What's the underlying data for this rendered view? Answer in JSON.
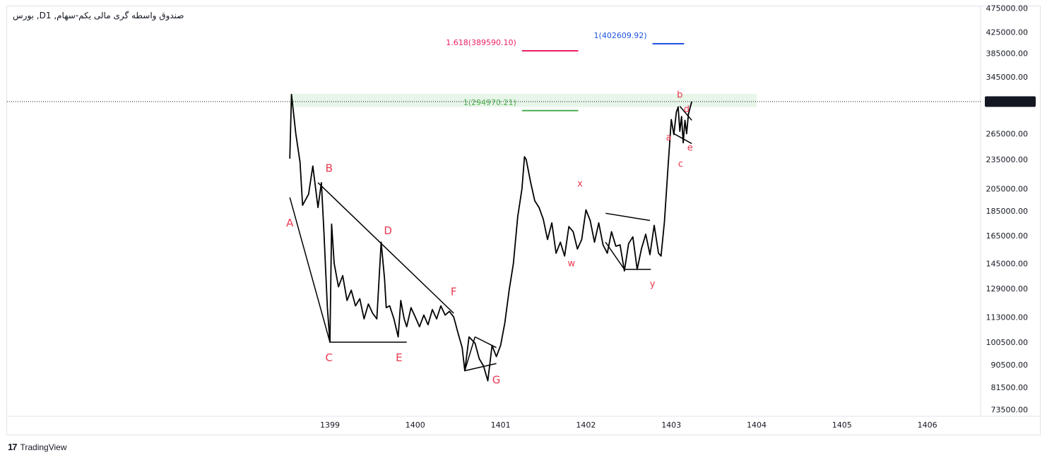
{
  "title": "بورس ,Dصندوق واسطه گری مالی یکم-سهام, 1",
  "brand": {
    "logo": "17",
    "name": "TradingView"
  },
  "colors": {
    "price_line": "#000000",
    "wave_label": "#e8384f",
    "fib_pink": "#e91e63",
    "fib_blue": "#1e53e5",
    "fib_green": "#4caf50",
    "zone_fill": "#e8f5e9",
    "price_badge": "#131722"
  },
  "chart_data": {
    "type": "line",
    "scale": "log",
    "x_ticks": [
      "1399",
      "1400",
      "1401",
      "1402",
      "1403",
      "1404",
      "1405",
      "1406"
    ],
    "y_ticks": [
      "475000.00",
      "425000.00",
      "385000.00",
      "345000.00",
      "265000.00",
      "235000.00",
      "205000.00",
      "185000.00",
      "165000.00",
      "145000.00",
      "129000.00",
      "113000.00",
      "100500.00",
      "90500.00",
      "81500.00",
      "73500.00"
    ],
    "ylim": [
      70000,
      480000
    ],
    "last_price": {
      "value": 307610,
      "label": "307610.00"
    },
    "series": [
      {
        "x": [
          1398.53,
          1398.55,
          1398.6,
          1398.65,
          1398.68,
          1398.75,
          1398.8,
          1398.86,
          1398.9,
          1398.93,
          1398.95,
          1398.97,
          1399.0,
          1399.02,
          1399.05,
          1399.1,
          1399.15,
          1399.2,
          1399.25,
          1399.3,
          1399.35,
          1399.4,
          1399.45,
          1399.5,
          1399.55,
          1399.6,
          1399.64,
          1399.66,
          1399.7,
          1399.75,
          1399.8,
          1399.83,
          1399.87,
          1399.9,
          1399.95,
          1400.0,
          1400.05,
          1400.1,
          1400.15,
          1400.2,
          1400.25,
          1400.3,
          1400.35,
          1400.4,
          1400.45,
          1400.5,
          1400.55,
          1400.58,
          1400.63,
          1400.7,
          1400.75,
          1400.8,
          1400.85,
          1400.9,
          1400.95,
          1401.0,
          1401.05,
          1401.1,
          1401.15,
          1401.2,
          1401.25,
          1401.28,
          1401.3,
          1401.35,
          1401.4,
          1401.45,
          1401.5,
          1401.55,
          1401.6,
          1401.65,
          1401.7,
          1401.75,
          1401.8,
          1401.85,
          1401.9,
          1401.95,
          1402.0,
          1402.05,
          1402.1,
          1402.15,
          1402.2,
          1402.25,
          1402.3,
          1402.35,
          1402.4,
          1402.45,
          1402.5,
          1402.55,
          1402.6,
          1402.65,
          1402.7,
          1402.75,
          1402.8,
          1402.85,
          1402.88,
          1402.92,
          1402.96,
          1403.0,
          1403.03,
          1403.06,
          1403.08,
          1403.1,
          1403.12,
          1403.14,
          1403.16,
          1403.18,
          1403.2,
          1403.22,
          1403.24
        ],
        "y": [
          236000,
          318000,
          265000,
          232000,
          190000,
          200000,
          228000,
          188000,
          211000,
          168000,
          140000,
          118000,
          100500,
          174000,
          145000,
          130000,
          137000,
          122000,
          128000,
          119000,
          123000,
          112000,
          120000,
          115000,
          112000,
          160000,
          135000,
          118000,
          119000,
          112000,
          103000,
          122000,
          112000,
          108000,
          118000,
          113000,
          108000,
          114000,
          109000,
          117000,
          112000,
          119000,
          114000,
          116000,
          113000,
          105000,
          98000,
          88000,
          103000,
          100000,
          93000,
          90000,
          84000,
          99000,
          94000,
          99000,
          110000,
          128000,
          145000,
          180000,
          205000,
          238000,
          235000,
          212000,
          194000,
          188000,
          178000,
          162000,
          175000,
          152000,
          160000,
          150000,
          172000,
          168000,
          155000,
          162000,
          186000,
          177000,
          160000,
          175000,
          158000,
          152000,
          168000,
          157000,
          158000,
          140000,
          159000,
          164000,
          141000,
          155000,
          166000,
          151000,
          173000,
          152000,
          150000,
          176000,
          225000,
          283000,
          264000,
          293000,
          300000,
          268000,
          287000,
          254000,
          282000,
          265000,
          290000,
          299000,
          307610
        ]
      }
    ],
    "wave_labels": [
      {
        "text": "A",
        "x": 1398.53,
        "y": 172000
      },
      {
        "text": "B",
        "x": 1398.99,
        "y": 222000
      },
      {
        "text": "C",
        "x": 1398.99,
        "y": 92000
      },
      {
        "text": "D",
        "x": 1399.68,
        "y": 166000
      },
      {
        "text": "E",
        "x": 1399.81,
        "y": 92000
      },
      {
        "text": "F",
        "x": 1400.45,
        "y": 125000
      },
      {
        "text": "G",
        "x": 1400.95,
        "y": 83000
      },
      {
        "text": "x",
        "x": 1401.93,
        "y": 207000
      },
      {
        "text": "w",
        "x": 1401.83,
        "y": 143000
      },
      {
        "text": "y",
        "x": 1402.78,
        "y": 130000
      },
      {
        "text": "a",
        "x": 1402.97,
        "y": 257000
      },
      {
        "text": "b",
        "x": 1403.1,
        "y": 313000
      },
      {
        "text": "c",
        "x": 1403.11,
        "y": 227000
      },
      {
        "text": "d",
        "x": 1403.18,
        "y": 293000
      },
      {
        "text": "e",
        "x": 1403.22,
        "y": 245000
      }
    ],
    "fib_levels": [
      {
        "label": "1.618(389590.10)",
        "value": 389590.1,
        "x1": 1401.25,
        "x2": 1401.91,
        "color": "#e91e63"
      },
      {
        "label": "1(402609.92)",
        "value": 402609.92,
        "x1": 1402.78,
        "x2": 1403.15,
        "color": "#1e53e5"
      },
      {
        "label": "1(294970.21)",
        "value": 294970.21,
        "x1": 1401.25,
        "x2": 1401.91,
        "color": "#4caf50"
      }
    ],
    "zone": {
      "x1": 1398.53,
      "x2": 1404.0,
      "y_low": 300000,
      "y_high": 319000
    },
    "trendlines": [
      {
        "x1": 1398.53,
        "y1": 197000,
        "x2": 1399.0,
        "y2": 100500
      },
      {
        "x1": 1399.0,
        "y1": 100500,
        "x2": 1399.9,
        "y2": 100500
      },
      {
        "x1": 1398.86,
        "y1": 211000,
        "x2": 1400.45,
        "y2": 115000
      },
      {
        "x1": 1400.58,
        "y1": 88000,
        "x2": 1400.7,
        "y2": 103000
      },
      {
        "x1": 1400.7,
        "y1": 103000,
        "x2": 1400.95,
        "y2": 98000
      },
      {
        "x1": 1400.58,
        "y1": 88000,
        "x2": 1400.95,
        "y2": 91000
      },
      {
        "x1": 1402.23,
        "y1": 183000,
        "x2": 1402.75,
        "y2": 177000
      },
      {
        "x1": 1402.23,
        "y1": 160000,
        "x2": 1402.45,
        "y2": 141000
      },
      {
        "x1": 1402.45,
        "y1": 141000,
        "x2": 1402.76,
        "y2": 141000
      },
      {
        "x1": 1403.03,
        "y1": 265000,
        "x2": 1403.24,
        "y2": 253000
      },
      {
        "x1": 1403.1,
        "y1": 301000,
        "x2": 1403.24,
        "y2": 282000
      }
    ]
  }
}
